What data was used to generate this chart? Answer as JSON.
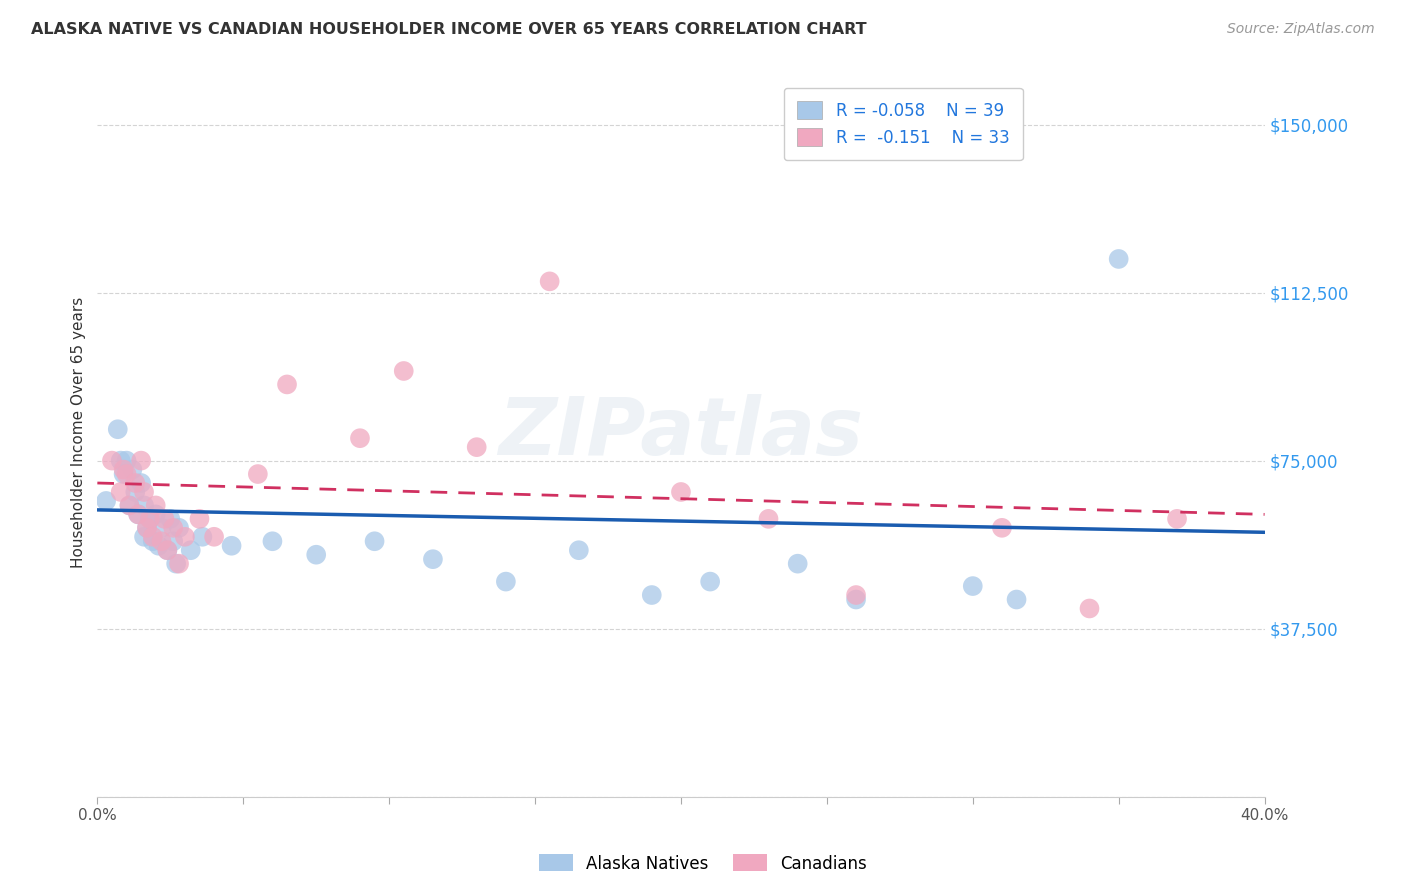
{
  "title": "ALASKA NATIVE VS CANADIAN HOUSEHOLDER INCOME OVER 65 YEARS CORRELATION CHART",
  "source": "Source: ZipAtlas.com",
  "ylabel": "Householder Income Over 65 years",
  "xlim": [
    0.0,
    0.4
  ],
  "ylim": [
    0,
    162500
  ],
  "yticks": [
    0,
    37500,
    75000,
    112500,
    150000
  ],
  "ytick_labels": [
    "",
    "$37,500",
    "$75,000",
    "$112,500",
    "$150,000"
  ],
  "xticks": [
    0.0,
    0.05,
    0.1,
    0.15,
    0.2,
    0.25,
    0.3,
    0.35,
    0.4
  ],
  "xtick_labels": [
    "0.0%",
    "",
    "",
    "",
    "",
    "",
    "",
    "",
    "40.0%"
  ],
  "grid_color": "#d0d0d0",
  "background_color": "#ffffff",
  "alaska_color": "#a8c8e8",
  "canadian_color": "#f0a8c0",
  "alaska_line_color": "#1a5cb0",
  "canadian_line_color": "#d03060",
  "watermark": "ZIPatlas",
  "alaska_x": [
    0.003,
    0.007,
    0.008,
    0.009,
    0.01,
    0.011,
    0.012,
    0.013,
    0.014,
    0.015,
    0.016,
    0.016,
    0.017,
    0.018,
    0.019,
    0.02,
    0.021,
    0.022,
    0.024,
    0.025,
    0.026,
    0.027,
    0.028,
    0.032,
    0.036,
    0.046,
    0.06,
    0.075,
    0.095,
    0.115,
    0.14,
    0.165,
    0.19,
    0.21,
    0.24,
    0.26,
    0.3,
    0.315,
    0.35
  ],
  "alaska_y": [
    66000,
    82000,
    75000,
    72000,
    75000,
    65000,
    73000,
    68000,
    63000,
    70000,
    58000,
    65000,
    60000,
    62000,
    57000,
    63000,
    56000,
    60000,
    55000,
    62000,
    57000,
    52000,
    60000,
    55000,
    58000,
    56000,
    57000,
    54000,
    57000,
    53000,
    48000,
    55000,
    45000,
    48000,
    52000,
    44000,
    47000,
    44000,
    120000
  ],
  "canadian_x": [
    0.005,
    0.008,
    0.009,
    0.01,
    0.011,
    0.013,
    0.014,
    0.015,
    0.016,
    0.017,
    0.018,
    0.019,
    0.02,
    0.022,
    0.023,
    0.024,
    0.026,
    0.028,
    0.03,
    0.035,
    0.04,
    0.055,
    0.065,
    0.09,
    0.105,
    0.13,
    0.155,
    0.2,
    0.23,
    0.26,
    0.31,
    0.34,
    0.37
  ],
  "canadian_y": [
    75000,
    68000,
    73000,
    72000,
    65000,
    70000,
    63000,
    75000,
    68000,
    60000,
    62000,
    58000,
    65000,
    57000,
    62000,
    55000,
    60000,
    52000,
    58000,
    62000,
    58000,
    72000,
    92000,
    80000,
    95000,
    78000,
    115000,
    68000,
    62000,
    45000,
    60000,
    42000,
    62000
  ],
  "alaska_trend_x0": 0.0,
  "alaska_trend_y0": 64000,
  "alaska_trend_x1": 0.4,
  "alaska_trend_y1": 59000,
  "canadian_trend_x0": 0.0,
  "canadian_trend_y0": 70000,
  "canadian_trend_x1": 0.4,
  "canadian_trend_y1": 63000
}
